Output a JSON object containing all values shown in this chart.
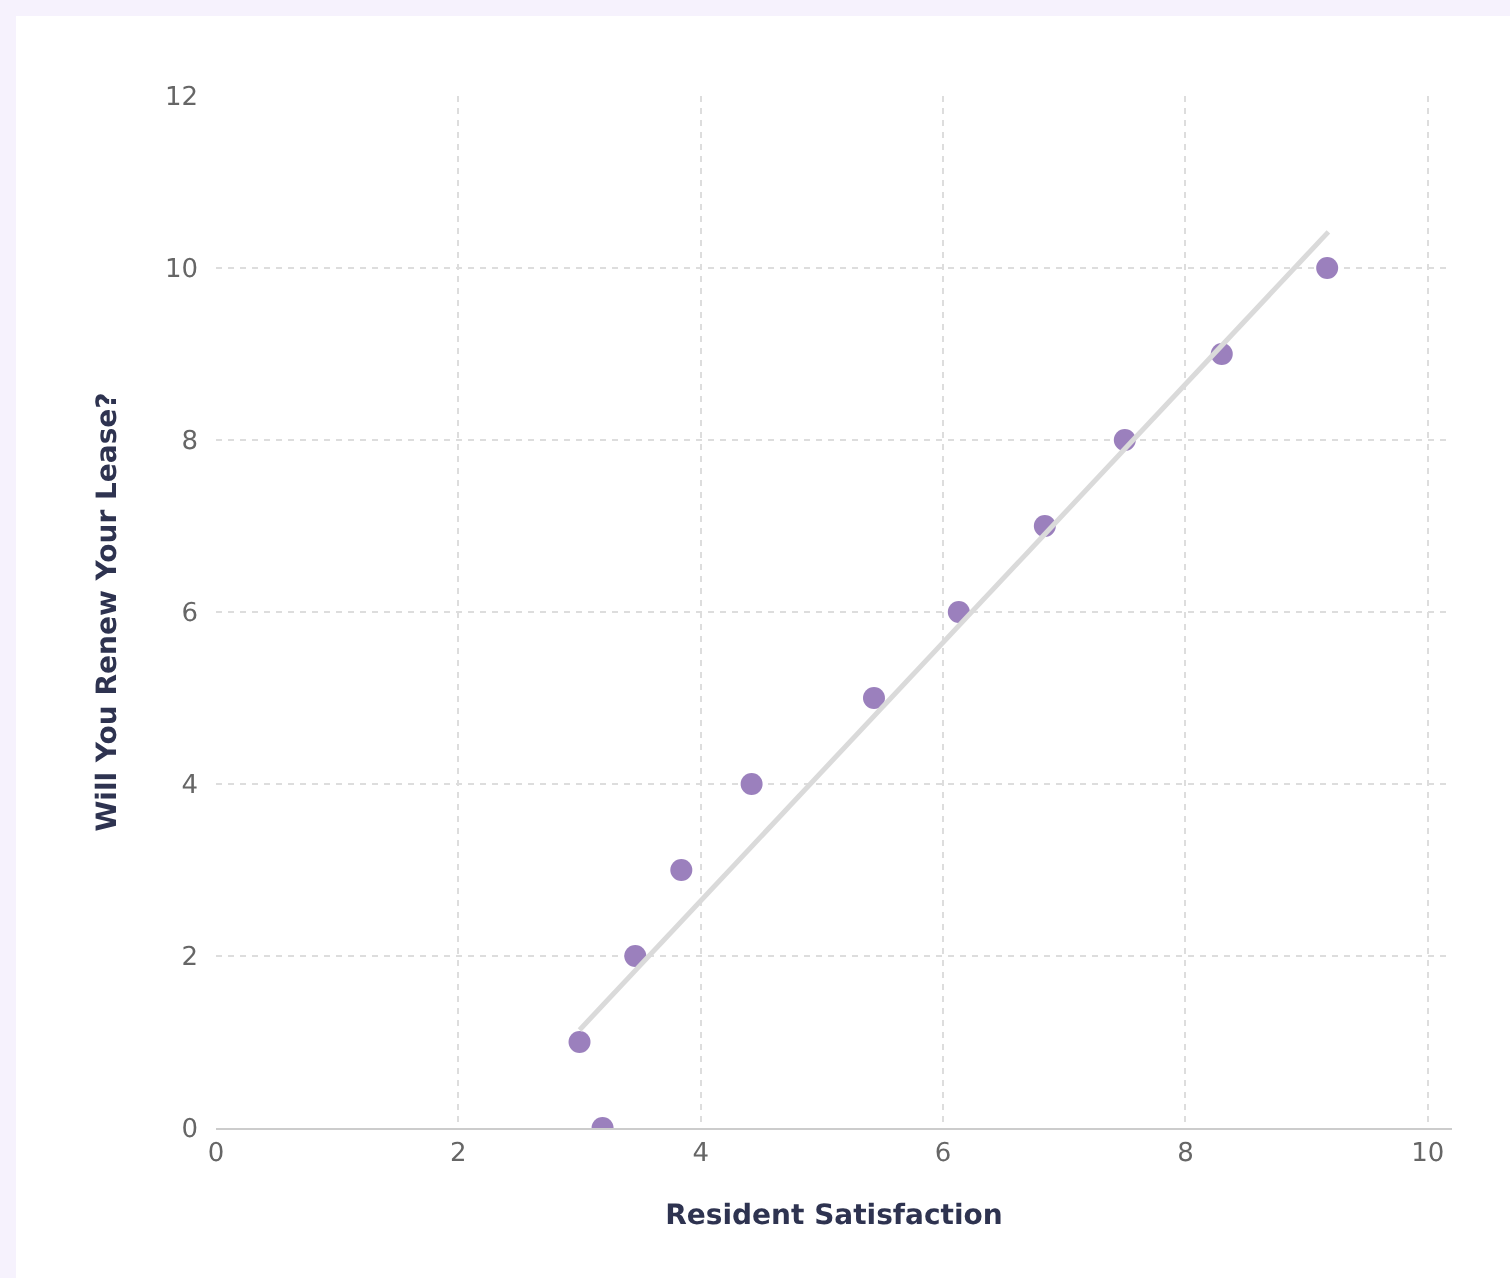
{
  "chart_data": {
    "type": "scatter",
    "xlabel": "Resident Satisfaction",
    "ylabel": "Will You Renew Your Lease?",
    "series": [
      {
        "color": "#9b80bd",
        "marker": "circle",
        "x": [
          3.0,
          3.19,
          3.46,
          3.84,
          4.42,
          5.43,
          6.13,
          6.84,
          7.5,
          8.3,
          9.17
        ],
        "values": [
          1,
          0,
          2,
          3,
          4,
          5,
          6,
          7,
          8,
          9,
          10
        ]
      },
      {
        "type": "line",
        "color": "#dadada",
        "line_style": "solid",
        "x": [
          3.0,
          9.18
        ],
        "values": [
          1.14,
          10.42
        ]
      }
    ],
    "xlim": [
      0,
      10.2
    ],
    "xticks": [
      0,
      2,
      4,
      6,
      8,
      10
    ],
    "ylim": [
      0,
      12
    ],
    "yticks": [
      0,
      2,
      4,
      6,
      8,
      10,
      12
    ],
    "grid": true
  }
}
